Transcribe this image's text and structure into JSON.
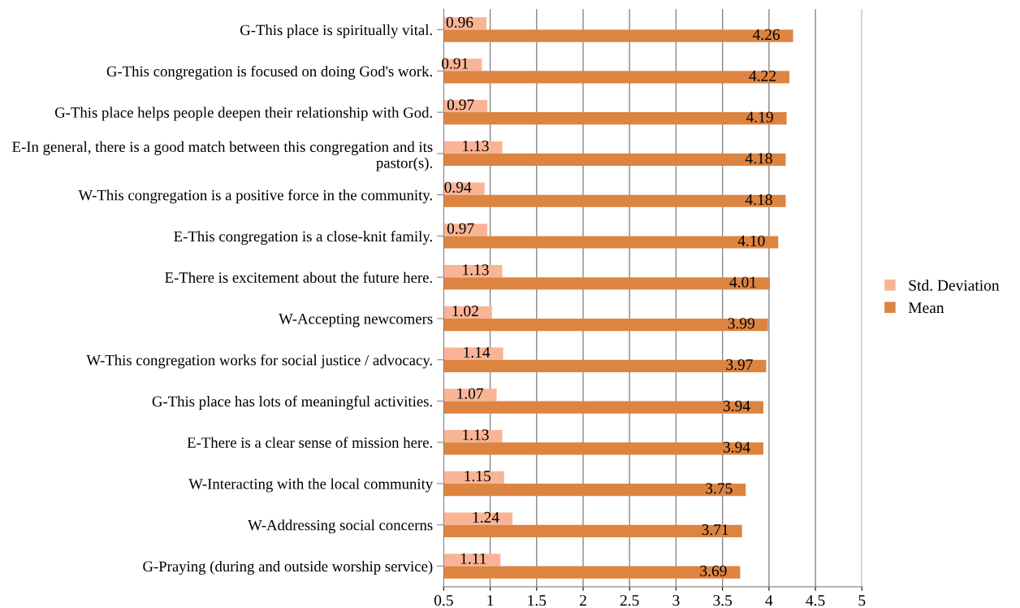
{
  "chart_data": {
    "type": "bar",
    "orientation": "horizontal",
    "categories": [
      "G-This place is spiritually vital.",
      "G-This congregation is focused on doing God's work.",
      "G-This place helps people deepen their relationship with God.",
      "E-In general, there is a good match between this congregation and its pastor(s).",
      "W-This congregation is a positive force in the community.",
      "E-This congregation is a close-knit family.",
      "E-There is excitement about the future here.",
      "W-Accepting newcomers",
      "W-This congregation works for social justice / advocacy.",
      "G-This place has lots of meaningful activities.",
      "E-There is a clear sense of mission here.",
      "W-Interacting with the local community",
      "W-Addressing social concerns",
      "G-Praying (during and outside worship service)"
    ],
    "series": [
      {
        "name": "Std. Deviation",
        "color": "#f9b496",
        "values": [
          0.96,
          0.91,
          0.97,
          1.13,
          0.94,
          0.97,
          1.13,
          1.02,
          1.14,
          1.07,
          1.13,
          1.15,
          1.24,
          1.11
        ],
        "value_labels": [
          "0.96",
          "0.91",
          "0.97",
          "1.13",
          "0.94",
          "0.97",
          "1.13",
          "1.02",
          "1.14",
          "1.07",
          "1.13",
          "1.15",
          "1.24",
          "1.11"
        ]
      },
      {
        "name": "Mean",
        "color": "#dd8441",
        "values": [
          4.26,
          4.22,
          4.19,
          4.18,
          4.18,
          4.1,
          4.01,
          3.99,
          3.97,
          3.94,
          3.94,
          3.75,
          3.71,
          3.69
        ],
        "value_labels": [
          "4.26",
          "4.22",
          "4.19",
          "4.18",
          "4.18",
          "4.10",
          "4.01",
          "3.99",
          "3.97",
          "3.94",
          "3.94",
          "3.75",
          "3.71",
          "3.69"
        ]
      }
    ],
    "xlim": [
      0.5,
      5
    ],
    "xticks": [
      0.5,
      1,
      1.5,
      2,
      2.5,
      3,
      3.5,
      4,
      4.5,
      5
    ],
    "grid": "x",
    "legend": "right"
  }
}
